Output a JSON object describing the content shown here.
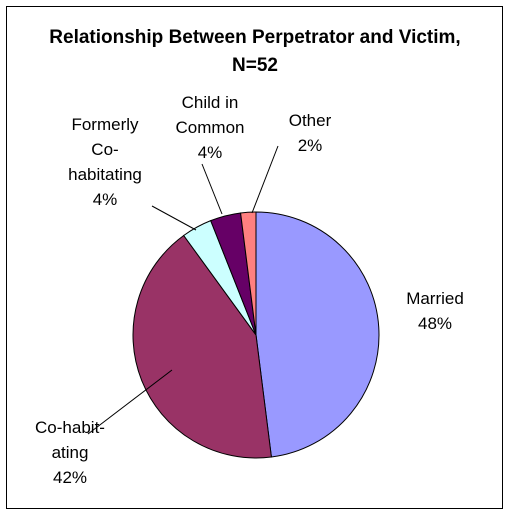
{
  "chart_data": {
    "type": "pie",
    "title": "Relationship Between Perpetrator and Victim, N=52",
    "categories": [
      "Married",
      "Co-habit-\nating",
      "Formerly\nCo-\nhabitating",
      "Child in\nCommon",
      "Other"
    ],
    "values": [
      48,
      42,
      4,
      4,
      2
    ],
    "value_labels": [
      "48%",
      "42%",
      "4%",
      "4%",
      "2%"
    ],
    "colors": [
      "#9999ff",
      "#993366",
      "#ccffff",
      "#660066",
      "#ff8080"
    ]
  }
}
